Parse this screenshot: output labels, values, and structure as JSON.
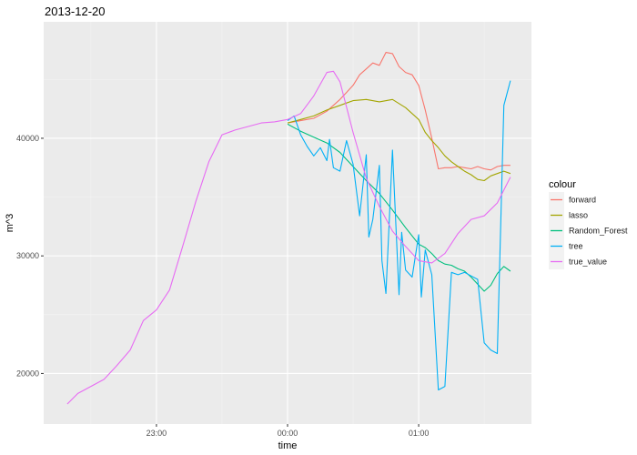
{
  "chart_data": {
    "type": "line",
    "title": "2013-12-20",
    "xlabel": "time",
    "ylabel": "m^3",
    "x_unit": "hours relative to 00:00 on 2013-12-20",
    "xlim": [
      -1.86,
      1.86
    ],
    "ylim": [
      15700,
      49900
    ],
    "x_ticks": [
      {
        "value": -1.0,
        "label": "23:00"
      },
      {
        "value": 0.0,
        "label": "00:00"
      },
      {
        "value": 1.0,
        "label": "01:00"
      }
    ],
    "y_ticks": [
      {
        "value": 20000,
        "label": "20000"
      },
      {
        "value": 30000,
        "label": "30000"
      },
      {
        "value": 40000,
        "label": "40000"
      }
    ],
    "grid": true,
    "legend": {
      "title": "colour",
      "position": "right"
    },
    "series": [
      {
        "name": "forward",
        "color": "#F8766D",
        "x": [
          0.0,
          0.1,
          0.2,
          0.3,
          0.4,
          0.5,
          0.55,
          0.6,
          0.65,
          0.7,
          0.75,
          0.8,
          0.85,
          0.9,
          0.95,
          1.0,
          1.05,
          1.1,
          1.15,
          1.2,
          1.25,
          1.3,
          1.35,
          1.4,
          1.45,
          1.5,
          1.55,
          1.6,
          1.65,
          1.7
        ],
        "y": [
          41300,
          41500,
          41700,
          42300,
          43300,
          44500,
          45400,
          45900,
          46400,
          46200,
          47300,
          47200,
          46100,
          45600,
          45400,
          44500,
          42400,
          40000,
          37400,
          37500,
          37500,
          37600,
          37500,
          37400,
          37600,
          37400,
          37300,
          37600,
          37700,
          37700
        ]
      },
      {
        "name": "lasso",
        "color": "#A3A500",
        "x": [
          0.0,
          0.1,
          0.2,
          0.3,
          0.4,
          0.5,
          0.6,
          0.7,
          0.8,
          0.9,
          1.0,
          1.05,
          1.1,
          1.15,
          1.2,
          1.25,
          1.3,
          1.35,
          1.4,
          1.45,
          1.5,
          1.55,
          1.6,
          1.65,
          1.7
        ],
        "y": [
          41300,
          41600,
          41900,
          42400,
          42800,
          43200,
          43300,
          43100,
          43300,
          42600,
          41600,
          40500,
          39800,
          39200,
          38500,
          38000,
          37600,
          37200,
          36900,
          36500,
          36400,
          36800,
          37000,
          37200,
          37000
        ]
      },
      {
        "name": "Random_Forest",
        "color": "#00BF7D",
        "x": [
          0.0,
          0.1,
          0.2,
          0.3,
          0.4,
          0.5,
          0.6,
          0.7,
          0.8,
          0.9,
          1.0,
          1.05,
          1.1,
          1.15,
          1.2,
          1.25,
          1.3,
          1.35,
          1.4,
          1.45,
          1.5,
          1.55,
          1.6,
          1.65,
          1.7
        ],
        "y": [
          41200,
          40600,
          40100,
          39600,
          38800,
          37600,
          36400,
          35300,
          33900,
          32400,
          31000,
          30700,
          30200,
          29600,
          29300,
          29200,
          28900,
          28700,
          28200,
          27600,
          27000,
          27500,
          28500,
          29100,
          28700
        ]
      },
      {
        "name": "tree",
        "color": "#00B0F6",
        "x": [
          0.0,
          0.05,
          0.1,
          0.15,
          0.2,
          0.25,
          0.3,
          0.32,
          0.35,
          0.4,
          0.45,
          0.5,
          0.55,
          0.6,
          0.62,
          0.65,
          0.7,
          0.72,
          0.75,
          0.8,
          0.85,
          0.87,
          0.9,
          0.95,
          1.0,
          1.02,
          1.05,
          1.1,
          1.15,
          1.2,
          1.25,
          1.3,
          1.35,
          1.4,
          1.45,
          1.5,
          1.55,
          1.6,
          1.65,
          1.7
        ],
        "y": [
          41500,
          41900,
          40300,
          39300,
          38500,
          39200,
          38100,
          39900,
          37500,
          37200,
          39800,
          37800,
          33400,
          38600,
          31600,
          33100,
          37700,
          29600,
          26800,
          39000,
          26700,
          32000,
          28800,
          28200,
          31800,
          26500,
          30500,
          28400,
          18600,
          18900,
          28600,
          28400,
          28600,
          28300,
          28000,
          22600,
          22000,
          21700,
          42800,
          44900
        ]
      },
      {
        "name": "true_value",
        "color": "#E76BF3",
        "x": [
          -1.68,
          -1.6,
          -1.5,
          -1.4,
          -1.3,
          -1.2,
          -1.1,
          -1.0,
          -0.9,
          -0.8,
          -0.7,
          -0.6,
          -0.5,
          -0.4,
          -0.3,
          -0.2,
          -0.1,
          0.0,
          0.1,
          0.2,
          0.3,
          0.35,
          0.4,
          0.5,
          0.6,
          0.7,
          0.8,
          0.9,
          1.0,
          1.1,
          1.2,
          1.3,
          1.4,
          1.5,
          1.6,
          1.7
        ],
        "y": [
          17400,
          18300,
          18900,
          19500,
          20700,
          22000,
          24500,
          25400,
          27100,
          30800,
          34600,
          38000,
          40300,
          40700,
          41000,
          41300,
          41400,
          41600,
          42100,
          43600,
          45600,
          45700,
          44800,
          40500,
          36600,
          34200,
          32100,
          30800,
          29600,
          29400,
          30200,
          31900,
          33100,
          33400,
          34500,
          36700
        ]
      }
    ]
  }
}
